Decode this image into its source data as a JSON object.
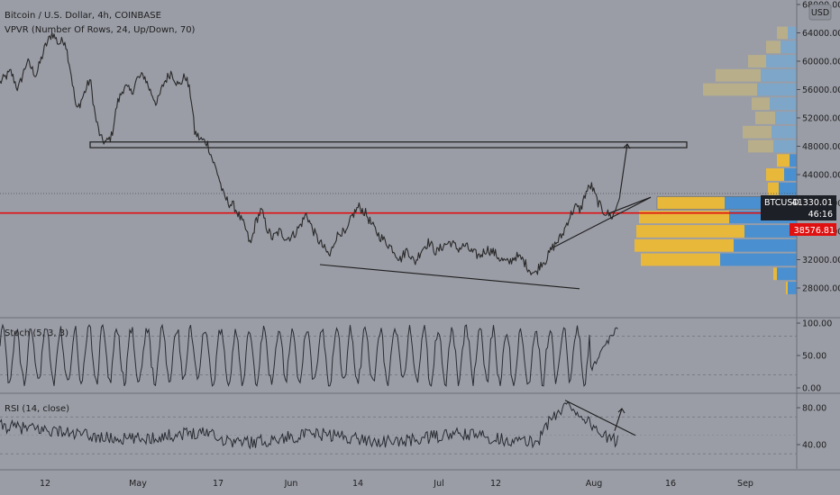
{
  "header": {
    "symbol_line": "Bitcoin / U.S. Dollar, 4h, COINBASE",
    "indicator_line": "VPVR (Number Of Rows, 24, Up/Down, 70)",
    "currency_badge": "USD"
  },
  "price_tags": {
    "symbol": "BTCUSD",
    "last_price": "41330.01",
    "countdown": "46:16",
    "red_line_price": "38576.81"
  },
  "colors": {
    "background": "#9a9da6",
    "price_line": "#2a2a2a",
    "red_line": "#e01010",
    "vp_up": "#4a90d0",
    "vp_down": "#e8b83a",
    "vp_up_faded": "#7ea6c8",
    "vp_down_faded": "#b8ae8a"
  },
  "chart_data": [
    {
      "type": "line",
      "panel": "price",
      "x_ticks": [
        "12",
        "May",
        "17",
        "Jun",
        "14",
        "Jul",
        "12",
        "Aug",
        "16",
        "Sep"
      ],
      "y_ticks": [
        "28000.00",
        "32000.00",
        "36000.00",
        "40000.00",
        "44000.00",
        "48000.00",
        "52000.00",
        "56000.00",
        "60000.00",
        "64000.00",
        "68000.00"
      ],
      "ylim": [
        26000,
        68000
      ],
      "series_anchors": [
        [
          0,
          57000
        ],
        [
          12,
          58500
        ],
        [
          20,
          56000
        ],
        [
          30,
          60000
        ],
        [
          40,
          58000
        ],
        [
          50,
          62000
        ],
        [
          58,
          64000
        ],
        [
          65,
          62500
        ],
        [
          72,
          63000
        ],
        [
          78,
          59000
        ],
        [
          85,
          53000
        ],
        [
          92,
          55000
        ],
        [
          100,
          57500
        ],
        [
          106,
          52000
        ],
        [
          112,
          49000
        ],
        [
          118,
          48500
        ],
        [
          124,
          49500
        ],
        [
          130,
          54000
        ],
        [
          138,
          56500
        ],
        [
          146,
          55500
        ],
        [
          152,
          57500
        ],
        [
          160,
          58000
        ],
        [
          166,
          56000
        ],
        [
          174,
          54000
        ],
        [
          182,
          57000
        ],
        [
          190,
          58500
        ],
        [
          198,
          56500
        ],
        [
          206,
          58000
        ],
        [
          212,
          55000
        ],
        [
          216,
          50000
        ],
        [
          222,
          49000
        ],
        [
          230,
          48500
        ],
        [
          236,
          46000
        ],
        [
          242,
          44000
        ],
        [
          248,
          41000
        ],
        [
          254,
          40000
        ],
        [
          260,
          39500
        ],
        [
          266,
          38000
        ],
        [
          272,
          36500
        ],
        [
          278,
          34000
        ],
        [
          284,
          37500
        ],
        [
          290,
          39000
        ],
        [
          296,
          36500
        ],
        [
          302,
          35000
        ],
        [
          310,
          36000
        ],
        [
          318,
          35000
        ],
        [
          326,
          35500
        ],
        [
          334,
          37000
        ],
        [
          340,
          38500
        ],
        [
          346,
          36500
        ],
        [
          352,
          35000
        ],
        [
          360,
          33500
        ],
        [
          366,
          32500
        ],
        [
          372,
          35000
        ],
        [
          378,
          36000
        ],
        [
          384,
          35500
        ],
        [
          390,
          38000
        ],
        [
          398,
          39500
        ],
        [
          406,
          38500
        ],
        [
          412,
          37000
        ],
        [
          420,
          35500
        ],
        [
          428,
          34500
        ],
        [
          436,
          33500
        ],
        [
          444,
          32000
        ],
        [
          452,
          33500
        ],
        [
          460,
          31500
        ],
        [
          468,
          33500
        ],
        [
          476,
          34500
        ],
        [
          484,
          33000
        ],
        [
          492,
          34000
        ],
        [
          500,
          34500
        ],
        [
          508,
          33500
        ],
        [
          516,
          34000
        ],
        [
          524,
          33000
        ],
        [
          532,
          32500
        ],
        [
          540,
          33500
        ],
        [
          548,
          33000
        ],
        [
          556,
          32000
        ],
        [
          564,
          31500
        ],
        [
          572,
          32500
        ],
        [
          580,
          32000
        ],
        [
          588,
          30500
        ],
        [
          594,
          30000
        ],
        [
          600,
          31500
        ],
        [
          606,
          32000
        ],
        [
          612,
          33500
        ],
        [
          618,
          34500
        ],
        [
          624,
          35500
        ],
        [
          630,
          37500
        ],
        [
          638,
          39500
        ],
        [
          644,
          39000
        ],
        [
          650,
          41500
        ],
        [
          656,
          42500
        ],
        [
          662,
          40500
        ],
        [
          668,
          39000
        ],
        [
          674,
          38500
        ],
        [
          680,
          38000
        ],
        [
          684,
          39500
        ],
        [
          688,
          41330
        ]
      ],
      "projection": [
        [
          688,
          41330
        ],
        [
          696,
          48300
        ]
      ],
      "resistance_zone": {
        "x_start": 100,
        "x_end": 762,
        "price_top": 48600,
        "price_bottom": 47800
      },
      "trendlines": [
        [
          [
            355,
            31300
          ],
          [
            643,
            27900
          ]
        ],
        [
          [
            615,
            33800
          ],
          [
            722,
            40800
          ]
        ],
        [
          [
            675,
            38500
          ],
          [
            722,
            40800
          ]
        ]
      ],
      "horizontal_line": 38576.81,
      "volume_profile": {
        "rows": [
          {
            "price": 28000,
            "up": 10,
            "down": 2
          },
          {
            "price": 30000,
            "up": 22,
            "down": 4
          },
          {
            "price": 32000,
            "up": 85,
            "down": 88
          },
          {
            "price": 34000,
            "up": 70,
            "down": 110
          },
          {
            "price": 36000,
            "up": 58,
            "down": 120
          },
          {
            "price": 38000,
            "up": 75,
            "down": 100
          },
          {
            "price": 40000,
            "up": 80,
            "down": 75
          },
          {
            "price": 42000,
            "up": 20,
            "down": 12
          },
          {
            "price": 44000,
            "up": 14,
            "down": 20
          },
          {
            "price": 46000,
            "up": 8,
            "down": 14
          },
          {
            "price": 48000,
            "up": 26,
            "down": 28
          },
          {
            "price": 50000,
            "up": 28,
            "down": 32
          },
          {
            "price": 52000,
            "up": 24,
            "down": 22
          },
          {
            "price": 54000,
            "up": 30,
            "down": 20
          },
          {
            "price": 56000,
            "up": 44,
            "down": 60
          },
          {
            "price": 58000,
            "up": 40,
            "down": 50
          },
          {
            "price": 60000,
            "up": 34,
            "down": 20
          },
          {
            "price": 62000,
            "up": 18,
            "down": 16
          },
          {
            "price": 64000,
            "up": 10,
            "down": 12
          }
        ]
      }
    },
    {
      "type": "line",
      "panel": "stoch",
      "title": "Stoch (5, 3, 3)",
      "y_ticks": [
        "0.00",
        "50.00",
        "100.00"
      ],
      "ylim": [
        0,
        100
      ],
      "bands": [
        20,
        80
      ],
      "end_x": 686
    },
    {
      "type": "line",
      "panel": "rsi",
      "title": "RSI (14, close)",
      "y_ticks": [
        "40.00",
        "80.00"
      ],
      "ylim": [
        25,
        95
      ],
      "bands": [
        30,
        70
      ],
      "end_x": 686,
      "trendline": [
        [
          627,
          88
        ],
        [
          705,
          50
        ]
      ],
      "arrow": [
        [
          682,
          55
        ],
        [
          690,
          79
        ]
      ]
    }
  ]
}
